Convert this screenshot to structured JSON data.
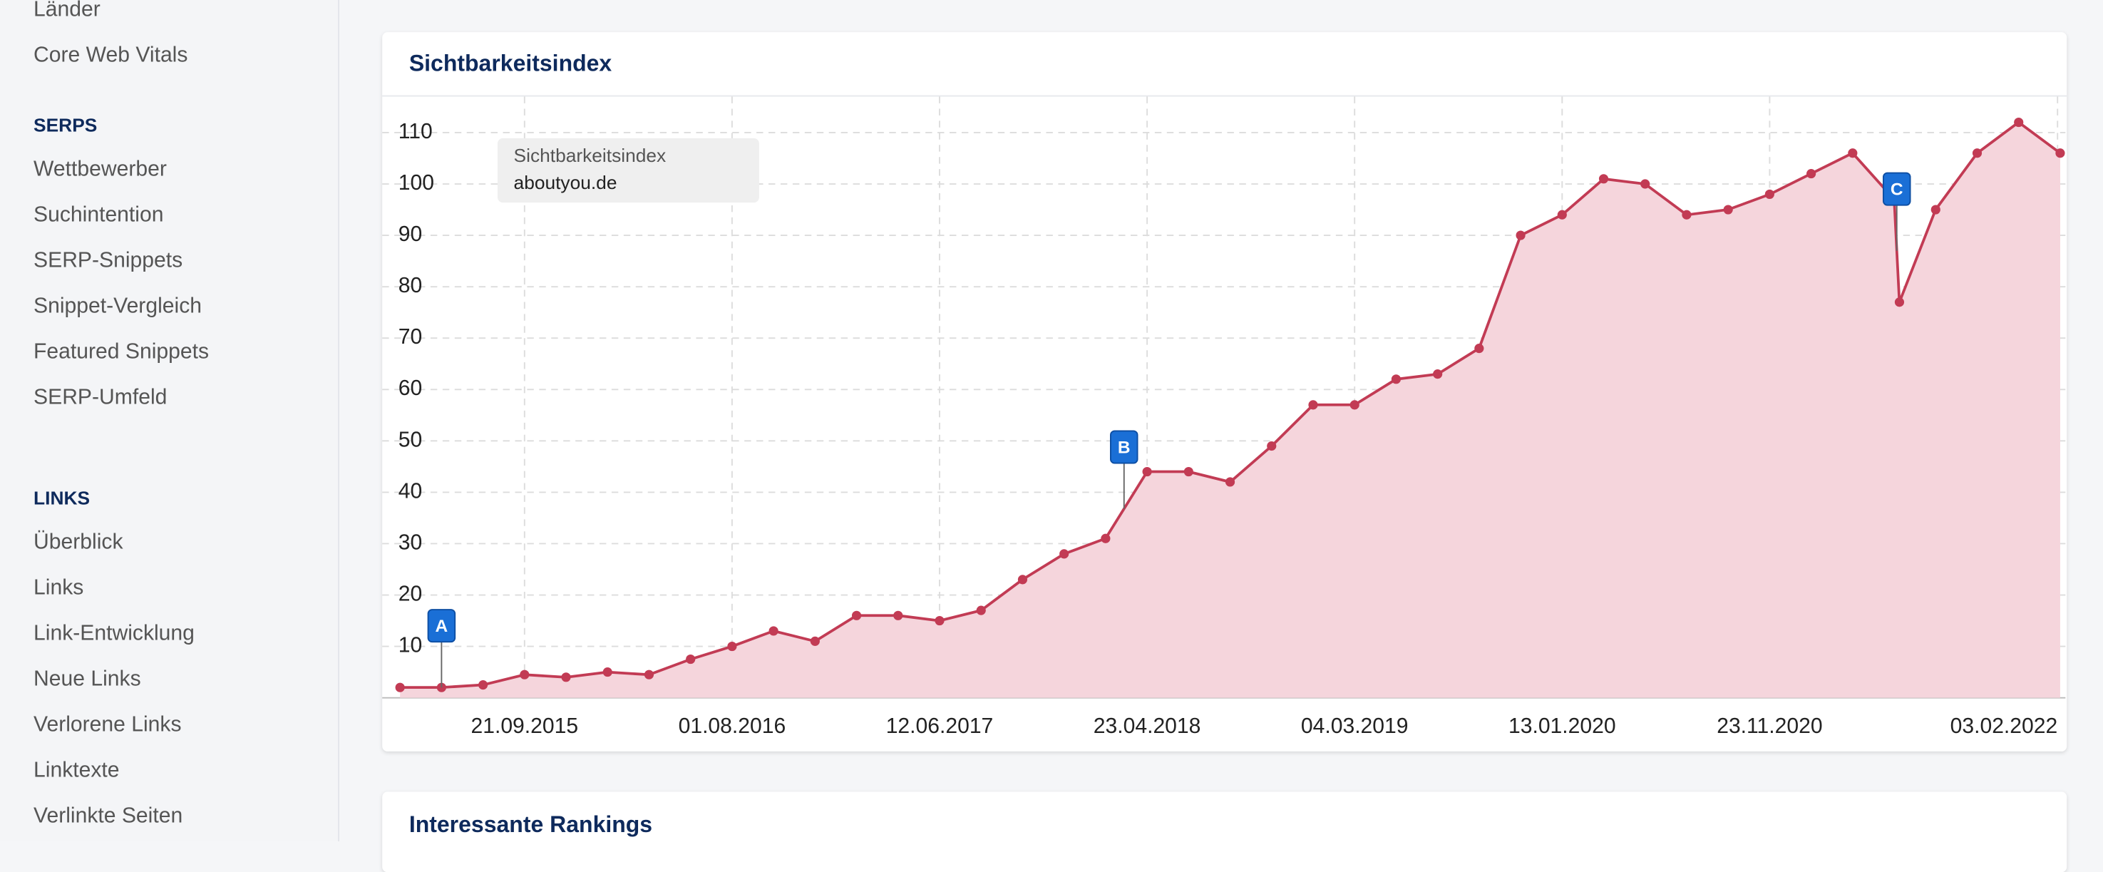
{
  "sidebar": {
    "top_items": [
      "Länder",
      "Core Web Vitals"
    ],
    "sections": [
      {
        "heading": "SERPS",
        "items": [
          "Wettbewerber",
          "Suchintention",
          "SERP-Snippets",
          "Snippet-Vergleich",
          "Featured Snippets",
          "SERP-Umfeld"
        ]
      },
      {
        "heading": "LINKS",
        "items": [
          "Überblick",
          "Links",
          "Link-Entwicklung",
          "Neue Links",
          "Verlorene Links",
          "Linktexte",
          "Verlinkte Seiten"
        ]
      }
    ]
  },
  "chart_data": {
    "type": "area",
    "title": "Sichtbarkeitsindex",
    "legend_title": "Sichtbarkeitsindex",
    "x": [
      "16.03.2015",
      "18.05.2015",
      "20.07.2015",
      "21.09.2015",
      "23.11.2015",
      "25.01.2016",
      "28.03.2016",
      "30.05.2016",
      "01.08.2016",
      "03.10.2016",
      "05.12.2016",
      "06.02.2017",
      "10.04.2017",
      "12.06.2017",
      "14.08.2017",
      "16.10.2017",
      "18.12.2017",
      "19.02.2018",
      "23.04.2018",
      "25.06.2018",
      "27.08.2018",
      "29.10.2018",
      "31.12.2018",
      "04.03.2019",
      "06.05.2019",
      "08.07.2019",
      "09.09.2019",
      "11.11.2019",
      "13.01.2020",
      "16.03.2020",
      "18.05.2020",
      "20.07.2020",
      "21.09.2020",
      "23.11.2020",
      "25.01.2021",
      "29.03.2021",
      "31.05.2021",
      "08.06.2021",
      "02.08.2021",
      "04.10.2021",
      "06.12.2021",
      "07.02.2022"
    ],
    "series": [
      {
        "name": "aboutyou.de",
        "color": "#c23b54",
        "fill": "#f5d5dc",
        "values": [
          2,
          2,
          2.5,
          4.5,
          4,
          5,
          4.5,
          7.5,
          10,
          13,
          11,
          16,
          16,
          15,
          17,
          23,
          28,
          31,
          44,
          44,
          42,
          49,
          57,
          57,
          62,
          63,
          68,
          90,
          94,
          101,
          100,
          94,
          95,
          98,
          102,
          106,
          97,
          77,
          95,
          106,
          112,
          106
        ]
      }
    ],
    "annotations": [
      {
        "label": "A",
        "x": "18.05.2015"
      },
      {
        "label": "B",
        "x": "19.03.2018"
      },
      {
        "label": "C",
        "x": "04.06.2021"
      }
    ],
    "xlim": [
      "17.02.2015",
      "15.02.2022"
    ],
    "xticks": [
      "21.09.2015",
      "01.08.2016",
      "12.06.2017",
      "23.04.2018",
      "04.03.2019",
      "13.01.2020",
      "23.11.2020",
      "03.02.2022"
    ],
    "ylim": [
      0,
      117
    ],
    "yticks": [
      10,
      20,
      30,
      40,
      50,
      60,
      70,
      80,
      90,
      100,
      110
    ],
    "grid": true
  },
  "next_card": {
    "title": "Interessante Rankings"
  }
}
